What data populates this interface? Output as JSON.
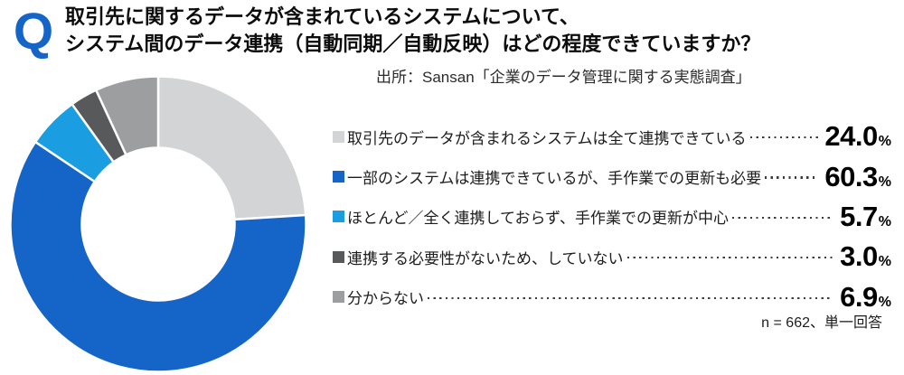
{
  "question": {
    "icon_glyph": "Q",
    "icon_color": "#1565c8",
    "line1": "取引先に関するデータが含まれているシステムについて、",
    "line2": "システム間のデータ連携（自動同期／自動反映）はどの程度できていますか？"
  },
  "source": "出所：Sansan「企業のデータ管理に関する実態調査」",
  "footer": "n = 662、単一回答",
  "chart_data": {
    "type": "pie",
    "subtype": "donut",
    "title": "システム間のデータ連携（自動同期／自動反映）はどの程度できていますか？",
    "start_angle_deg": 0,
    "direction": "clockwise",
    "inner_radius_ratio": 0.51,
    "categories": [
      "取引先のデータが含まれるシステムは全て連携できている",
      "一部のシステムは連携できているが、手作業での更新も必要",
      "ほとんど／全く連携しておらず、手作業での更新が中心",
      "連携する必要性がないため、していない",
      "分からない"
    ],
    "values": [
      24.0,
      60.3,
      5.7,
      3.0,
      6.9
    ],
    "colors": [
      "#d3d4d6",
      "#1565c8",
      "#1b9de2",
      "#58595b",
      "#9d9ea0"
    ],
    "unit": "%",
    "legend_position": "right",
    "sample_note": "n = 662、単一回答"
  },
  "legend": {
    "items": [
      {
        "label": "取引先のデータが含まれるシステムは全て連携できている",
        "value": "24.0",
        "unit": "%",
        "color": "#d3d4d6"
      },
      {
        "label": "一部のシステムは連携できているが、手作業での更新も必要",
        "value": "60.3",
        "unit": "%",
        "color": "#1565c8"
      },
      {
        "label": "ほとんど／全く連携しておらず、手作業での更新が中心",
        "value": "5.7",
        "unit": "%",
        "color": "#1b9de2"
      },
      {
        "label": "連携する必要性がないため、していない",
        "value": "3.0",
        "unit": "%",
        "color": "#58595b"
      },
      {
        "label": "分からない",
        "value": "6.9",
        "unit": "%",
        "color": "#9d9ea0"
      }
    ]
  }
}
